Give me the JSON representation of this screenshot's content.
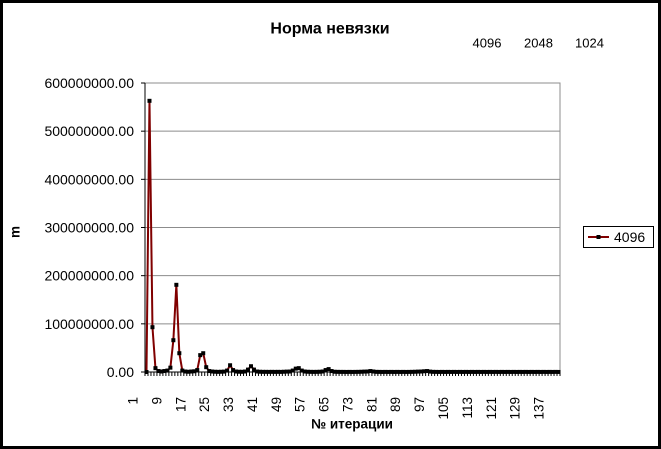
{
  "header_values": [
    "4096",
    "2048",
    "1024"
  ],
  "chart_data": {
    "type": "line",
    "title": "Норма невязки",
    "xlabel": "№ итерации",
    "ylabel": "m",
    "ylim": [
      0,
      600000000
    ],
    "yticks": [
      0,
      100000000,
      200000000,
      300000000,
      400000000,
      500000000,
      600000000
    ],
    "ytick_labels": [
      "0.00",
      "100000000.00",
      "200000000.00",
      "300000000.00",
      "400000000.00",
      "500000000.00",
      "600000000.00"
    ],
    "xtick_labels": [
      "1",
      "9",
      "17",
      "25",
      "33",
      "41",
      "49",
      "57",
      "65",
      "73",
      "81",
      "89",
      "97",
      "105",
      "113",
      "121",
      "129",
      "137"
    ],
    "x": [
      1,
      2,
      3,
      4,
      5,
      6,
      7,
      8,
      9,
      10,
      11,
      12,
      13,
      14,
      15,
      16,
      17,
      18,
      19,
      20,
      21,
      22,
      23,
      24,
      25,
      26,
      27,
      28,
      29,
      30,
      31,
      32,
      33,
      34,
      35,
      36,
      37,
      38,
      39,
      40,
      41,
      42,
      43,
      44,
      45,
      46,
      47,
      48,
      49,
      50,
      51,
      52,
      53,
      54,
      55,
      56,
      57,
      58,
      59,
      60,
      61,
      62,
      63,
      64,
      65,
      66,
      67,
      68,
      69,
      70,
      71,
      72,
      73,
      74,
      75,
      76,
      77,
      78,
      79,
      80,
      81,
      82,
      83,
      84,
      85,
      86,
      87,
      88,
      89,
      90,
      91,
      92,
      93,
      94,
      95,
      96,
      97,
      98,
      99,
      100,
      101,
      102,
      103,
      104,
      105,
      106,
      107,
      108,
      109,
      110,
      111,
      112,
      113,
      114,
      115,
      116,
      117,
      118,
      119,
      120,
      121,
      122,
      123,
      124,
      125,
      126,
      127,
      128,
      129,
      130,
      131,
      132,
      133,
      134,
      135,
      136,
      137,
      138,
      139
    ],
    "series": [
      {
        "name": "4096",
        "color": "#800000",
        "marker_color": "#000000",
        "values": [
          0,
          563000000,
          93000000,
          8000000,
          2000000,
          1000000,
          2000000,
          3000000,
          9000000,
          66000000,
          181000000,
          39000000,
          3000000,
          1000000,
          500000,
          1000000,
          1500000,
          4000000,
          35000000,
          39000000,
          10000000,
          2000000,
          1000000,
          500000,
          300000,
          500000,
          800000,
          3000000,
          14000000,
          4000000,
          1000000,
          500000,
          400000,
          1000000,
          5000000,
          12000000,
          5000000,
          1000000,
          500000,
          300000,
          300000,
          200000,
          300000,
          200000,
          300000,
          200000,
          500000,
          800000,
          1000000,
          3000000,
          7000000,
          8000000,
          3000000,
          1000000,
          500000,
          300000,
          200000,
          300000,
          500000,
          1000000,
          4000000,
          6000000,
          2000000,
          500000,
          300000,
          200000,
          200000,
          100000,
          200000,
          100000,
          200000,
          300000,
          500000,
          800000,
          1000000,
          2000000,
          1000000,
          300000,
          200000,
          100000,
          200000,
          100000,
          200000,
          100000,
          200000,
          100000,
          200000,
          100000,
          200000,
          300000,
          500000,
          800000,
          1000000,
          1500000,
          2000000,
          800000,
          300000,
          200000,
          100000,
          200000,
          100000,
          200000,
          100000,
          200000,
          100000,
          200000,
          100000,
          200000,
          100000,
          200000,
          100000,
          200000,
          100000,
          200000,
          100000,
          200000,
          100000,
          200000,
          100000,
          200000,
          100000,
          200000,
          100000,
          200000,
          100000,
          200000,
          100000,
          200000,
          100000,
          200000,
          100000,
          200000,
          100000,
          200000,
          100000,
          200000,
          100000,
          200000,
          100000
        ]
      }
    ],
    "legend": {
      "position": "right"
    },
    "grid": true
  }
}
